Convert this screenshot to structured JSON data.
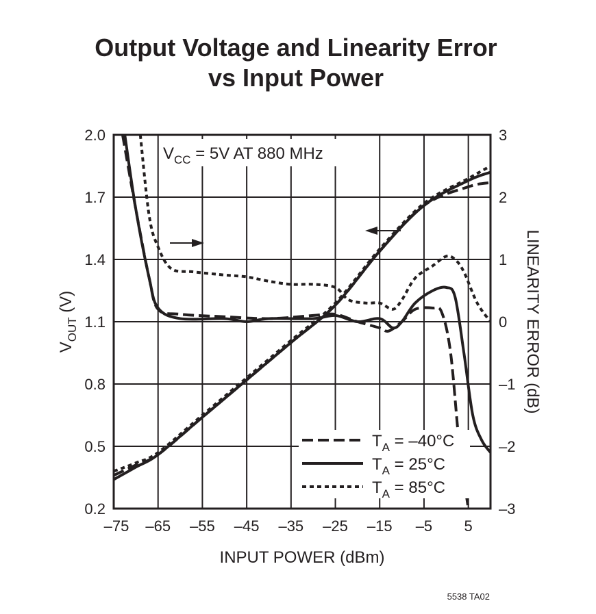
{
  "chart_data": {
    "type": "line",
    "title": [
      "Output Voltage and Linearity Error",
      "vs Input Power"
    ],
    "xlabel": "INPUT POWER (dBm)",
    "ylabel_left": {
      "main": "V",
      "sub": "OUT",
      "unit": " (V)"
    },
    "ylabel_right": "LINEARITY ERROR (dB)",
    "annotation": {
      "main": "V",
      "sub": "CC",
      "rest": " = 5V AT 880 MHz"
    },
    "footnote": "5538 TA02",
    "xlim": [
      -75,
      10
    ],
    "ylim_left": [
      0.2,
      2.0
    ],
    "ylim_right": [
      -3,
      3
    ],
    "grid": true,
    "legend_placement": "bottom-right",
    "x_ticks": [
      -75,
      -65,
      -55,
      -45,
      -35,
      -25,
      -15,
      -5,
      5
    ],
    "x_tick_labels": [
      "–75",
      "–65",
      "–55",
      "–45",
      "–35",
      "–25",
      "–15",
      "–5",
      "5"
    ],
    "y_left_ticks": [
      0.2,
      0.5,
      0.8,
      1.1,
      1.4,
      1.7,
      2.0
    ],
    "y_left_tick_labels": [
      "0.2",
      "0.5",
      "0.8",
      "1.1",
      "1.4",
      "1.7",
      "2.0"
    ],
    "y_right_ticks": [
      -3,
      -2,
      -1,
      0,
      1,
      2,
      3
    ],
    "y_right_tick_labels": [
      "–3",
      "–2",
      "–1",
      "0",
      "1",
      "2",
      "3"
    ],
    "series": [
      {
        "name": "T_A = –40°C",
        "legend": {
          "main": "T",
          "sub": "A",
          "rest": " = –40°C"
        },
        "style": "dashed",
        "vout": {
          "x": [
            -75,
            -70,
            -65,
            -55,
            -45,
            -35,
            -25,
            -15,
            -5,
            5,
            10
          ],
          "y": [
            0.36,
            0.41,
            0.46,
            0.64,
            0.82,
            1.0,
            1.18,
            1.44,
            1.66,
            1.75,
            1.77
          ]
        },
        "error": {
          "x": [
            -73,
            -70,
            -67,
            -65,
            -60,
            -50,
            -40,
            -30,
            -25,
            -20,
            -15,
            -13,
            -10,
            -7,
            -3,
            -1,
            1,
            3,
            5
          ],
          "y": [
            3,
            1.8,
            0.7,
            0.2,
            0.12,
            0.08,
            0.05,
            0.1,
            0.12,
            0.0,
            -0.1,
            -0.15,
            0.0,
            0.2,
            0.22,
            0.15,
            -0.5,
            -2.0,
            -3.0
          ]
        }
      },
      {
        "name": "T_A = 25°C",
        "legend": {
          "main": "T",
          "sub": "A",
          "rest": " = 25°C"
        },
        "style": "solid",
        "vout": {
          "x": [
            -75,
            -70,
            -65,
            -55,
            -45,
            -35,
            -25,
            -15,
            -5,
            5,
            10
          ],
          "y": [
            0.34,
            0.4,
            0.46,
            0.64,
            0.82,
            1.0,
            1.18,
            1.44,
            1.66,
            1.78,
            1.82
          ]
        },
        "error": {
          "x": [
            -72.5,
            -70,
            -67,
            -65,
            -60,
            -50,
            -45,
            -40,
            -30,
            -25,
            -20,
            -15,
            -12,
            -10,
            -7,
            -3,
            0,
            2,
            4,
            6,
            8,
            10
          ],
          "y": [
            3,
            1.8,
            0.7,
            0.22,
            0.05,
            0.05,
            0.0,
            0.05,
            0.05,
            0.1,
            0.0,
            0.05,
            -0.1,
            0.0,
            0.3,
            0.5,
            0.55,
            0.4,
            -0.5,
            -1.5,
            -1.9,
            -2.1
          ]
        }
      },
      {
        "name": "T_A = 85°C",
        "legend": {
          "main": "T",
          "sub": "A",
          "rest": " = 85°C"
        },
        "style": "dotted",
        "vout": {
          "x": [
            -75,
            -70,
            -65,
            -55,
            -45,
            -35,
            -25,
            -15,
            -5,
            5,
            10
          ],
          "y": [
            0.38,
            0.42,
            0.47,
            0.65,
            0.83,
            1.01,
            1.19,
            1.45,
            1.67,
            1.79,
            1.85
          ]
        },
        "error": {
          "x": [
            -69,
            -67,
            -65,
            -62,
            -57,
            -50,
            -45,
            -40,
            -35,
            -30,
            -25,
            -22,
            -18,
            -15,
            -12,
            -10,
            -7,
            -3,
            0,
            2,
            4,
            7,
            10
          ],
          "y": [
            3,
            1.7,
            1.2,
            0.85,
            0.8,
            0.75,
            0.72,
            0.65,
            0.6,
            0.6,
            0.55,
            0.35,
            0.3,
            0.3,
            0.2,
            0.35,
            0.7,
            0.9,
            1.05,
            1.0,
            0.8,
            0.3,
            0.0
          ]
        }
      }
    ]
  }
}
